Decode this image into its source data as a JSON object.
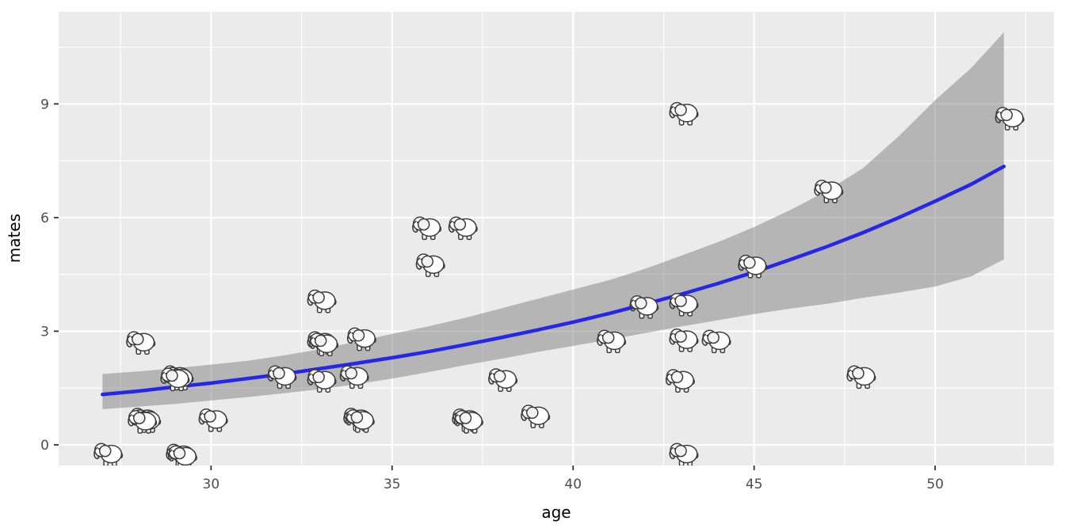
{
  "figure": {
    "kind": "ggplot-scatterplot-with-smooth",
    "background": "#FFFFFF"
  },
  "colors": {
    "panel_bg": "#EBEBEB",
    "grid": "#FFFFFF",
    "tick_label": "#4D4D4D",
    "axis_title": "#000000",
    "tick_mark": "#333333",
    "smooth_line": "#2626E8",
    "ribbon_fill": "#808080",
    "ribbon_opacity": 0.5,
    "elephant_outline": "#3D3D3D"
  },
  "chart_data": {
    "type": "scatter",
    "title": "",
    "xlabel": "age",
    "ylabel": "mates",
    "legend": false,
    "grid": true,
    "point_glyph": "elephant-icon",
    "xlim": [
      25.79,
      53.28
    ],
    "ylim": [
      -0.545,
      11.43
    ],
    "x_ticks": [
      30,
      35,
      40,
      45,
      50
    ],
    "x_tick_labels": [
      "30",
      "35",
      "40",
      "45",
      "50"
    ],
    "x_minor": [
      27.5,
      32.5,
      37.5,
      42.5,
      47.5,
      52.5
    ],
    "y_ticks": [
      0,
      3,
      6,
      9
    ],
    "y_tick_labels": [
      "0",
      "3",
      "6",
      "9"
    ],
    "y_minor": [
      1.5,
      4.5,
      7.5,
      10.5
    ],
    "points": [
      {
        "age": 27.1,
        "mates": -0.2,
        "n": 1
      },
      {
        "age": 28.1,
        "mates": 0.73,
        "n": 3
      },
      {
        "age": 28.0,
        "mates": 2.75,
        "n": 1
      },
      {
        "age": 29.0,
        "mates": 1.85,
        "n": 3
      },
      {
        "age": 29.1,
        "mates": -0.22,
        "n": 2
      },
      {
        "age": 30.0,
        "mates": 0.71,
        "n": 1
      },
      {
        "age": 31.9,
        "mates": 1.85,
        "n": 1
      },
      {
        "age": 33.0,
        "mates": 3.85,
        "n": 1
      },
      {
        "age": 33.0,
        "mates": 2.75,
        "n": 2
      },
      {
        "age": 33.0,
        "mates": 1.75,
        "n": 1
      },
      {
        "age": 34.1,
        "mates": 2.85,
        "n": 1
      },
      {
        "age": 33.9,
        "mates": 1.85,
        "n": 1
      },
      {
        "age": 34.0,
        "mates": 0.73,
        "n": 2
      },
      {
        "age": 35.9,
        "mates": 5.78,
        "n": 1
      },
      {
        "age": 36.0,
        "mates": 4.8,
        "n": 1
      },
      {
        "age": 36.9,
        "mates": 5.78,
        "n": 1
      },
      {
        "age": 37.0,
        "mates": 0.71,
        "n": 2
      },
      {
        "age": 38.0,
        "mates": 1.77,
        "n": 1
      },
      {
        "age": 38.9,
        "mates": 0.81,
        "n": 1
      },
      {
        "age": 41.0,
        "mates": 2.79,
        "n": 1
      },
      {
        "age": 41.9,
        "mates": 3.7,
        "n": 1
      },
      {
        "age": 43.0,
        "mates": 8.8,
        "n": 1
      },
      {
        "age": 43.0,
        "mates": 3.76,
        "n": 1
      },
      {
        "age": 43.0,
        "mates": 2.82,
        "n": 1
      },
      {
        "age": 43.9,
        "mates": 2.79,
        "n": 1
      },
      {
        "age": 42.9,
        "mates": 1.75,
        "n": 1
      },
      {
        "age": 43.0,
        "mates": -0.2,
        "n": 1
      },
      {
        "age": 44.9,
        "mates": 4.77,
        "n": 1
      },
      {
        "age": 47.0,
        "mates": 6.75,
        "n": 1
      },
      {
        "age": 47.9,
        "mates": 1.85,
        "n": 1
      },
      {
        "age": 52.0,
        "mates": 8.67,
        "n": 1
      }
    ],
    "smooth": {
      "model": "mates ≈ 1.33 · e^(0.0685·(age−27))",
      "line": [
        [
          27,
          1.33
        ],
        [
          28,
          1.42
        ],
        [
          29,
          1.53
        ],
        [
          30,
          1.63
        ],
        [
          31,
          1.75
        ],
        [
          32,
          1.87
        ],
        [
          33,
          2.01
        ],
        [
          34,
          2.15
        ],
        [
          35,
          2.3
        ],
        [
          36,
          2.46
        ],
        [
          37,
          2.64
        ],
        [
          38,
          2.83
        ],
        [
          39,
          3.03
        ],
        [
          40,
          3.24
        ],
        [
          41,
          3.47
        ],
        [
          42,
          3.72
        ],
        [
          43,
          3.98
        ],
        [
          44,
          4.26
        ],
        [
          45,
          4.56
        ],
        [
          46,
          4.89
        ],
        [
          47,
          5.23
        ],
        [
          48,
          5.6
        ],
        [
          49,
          6.0
        ],
        [
          50,
          6.43
        ],
        [
          51,
          6.88
        ],
        [
          51.9,
          7.35
        ]
      ],
      "ribbon": [
        [
          27,
          0.94,
          1.87
        ],
        [
          28,
          1.01,
          1.94
        ],
        [
          29,
          1.08,
          2.02
        ],
        [
          30,
          1.17,
          2.12
        ],
        [
          31,
          1.26,
          2.22
        ],
        [
          32,
          1.36,
          2.36
        ],
        [
          33,
          1.47,
          2.52
        ],
        [
          34,
          1.6,
          2.72
        ],
        [
          35,
          1.75,
          2.93
        ],
        [
          36,
          1.92,
          3.13
        ],
        [
          37,
          2.1,
          3.35
        ],
        [
          38,
          2.27,
          3.6
        ],
        [
          39,
          2.45,
          3.85
        ],
        [
          40,
          2.61,
          4.1
        ],
        [
          41,
          2.78,
          4.35
        ],
        [
          42,
          2.95,
          4.65
        ],
        [
          43,
          3.13,
          5.0
        ],
        [
          44,
          3.29,
          5.35
        ],
        [
          45,
          3.45,
          5.75
        ],
        [
          46,
          3.6,
          6.2
        ],
        [
          47,
          3.72,
          6.7
        ],
        [
          48,
          3.88,
          7.3
        ],
        [
          49,
          4.02,
          8.15
        ],
        [
          50,
          4.18,
          9.1
        ],
        [
          51,
          4.45,
          9.95
        ],
        [
          51.9,
          4.9,
          10.89
        ]
      ]
    }
  }
}
